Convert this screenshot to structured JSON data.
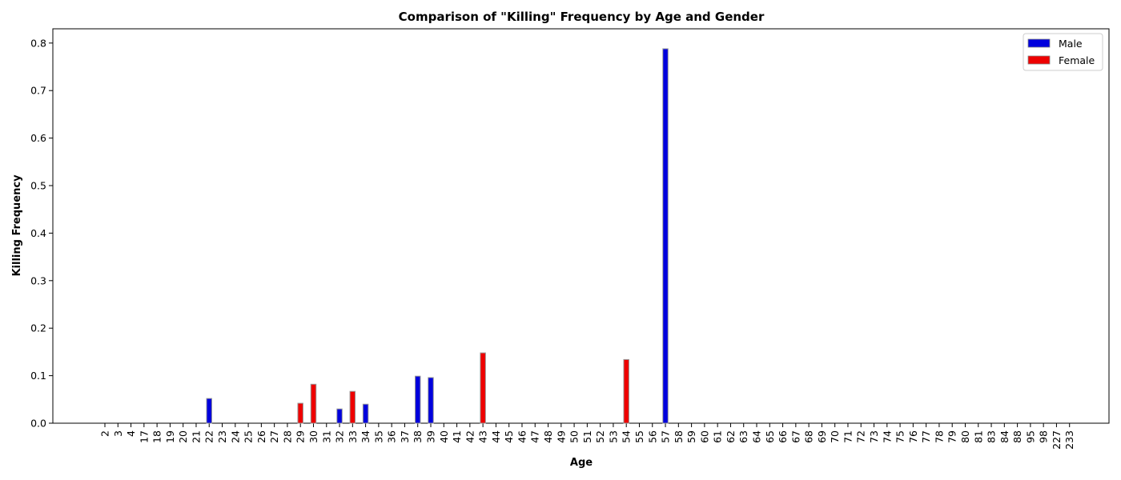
{
  "chart_data": {
    "type": "bar",
    "title": "Comparison of \"Killing\" Frequency by Age and Gender",
    "xlabel": "Age",
    "ylabel": "Killing Frequency",
    "categories": [
      "2",
      "3",
      "4",
      "17",
      "18",
      "19",
      "20",
      "21",
      "22",
      "23",
      "24",
      "25",
      "26",
      "27",
      "28",
      "29",
      "30",
      "31",
      "32",
      "33",
      "34",
      "35",
      "36",
      "37",
      "38",
      "39",
      "40",
      "41",
      "42",
      "43",
      "44",
      "45",
      "46",
      "47",
      "48",
      "49",
      "50",
      "51",
      "52",
      "53",
      "54",
      "55",
      "56",
      "57",
      "58",
      "59",
      "60",
      "61",
      "62",
      "63",
      "64",
      "65",
      "66",
      "67",
      "68",
      "69",
      "70",
      "71",
      "72",
      "73",
      "74",
      "75",
      "76",
      "77",
      "78",
      "79",
      "80",
      "81",
      "83",
      "84",
      "88",
      "95",
      "98",
      "227",
      "233"
    ],
    "ylim": [
      0,
      0.83
    ],
    "yticks": [
      "0.0",
      "0.1",
      "0.2",
      "0.3",
      "0.4",
      "0.5",
      "0.6",
      "0.7",
      "0.8"
    ],
    "ytick_values": [
      0,
      0.1,
      0.2,
      0.3,
      0.4,
      0.5,
      0.6,
      0.7,
      0.8
    ],
    "legend_position": "top-right",
    "grid": false,
    "series": [
      {
        "name": "Male",
        "color": "#0000dd",
        "values": {
          "22": 0.052,
          "32": 0.03,
          "34": 0.04,
          "38": 0.099,
          "39": 0.096,
          "57": 0.788
        }
      },
      {
        "name": "Female",
        "color": "#ee0000",
        "values": {
          "29": 0.042,
          "30": 0.082,
          "33": 0.067,
          "43": 0.148,
          "54": 0.134
        }
      }
    ]
  }
}
